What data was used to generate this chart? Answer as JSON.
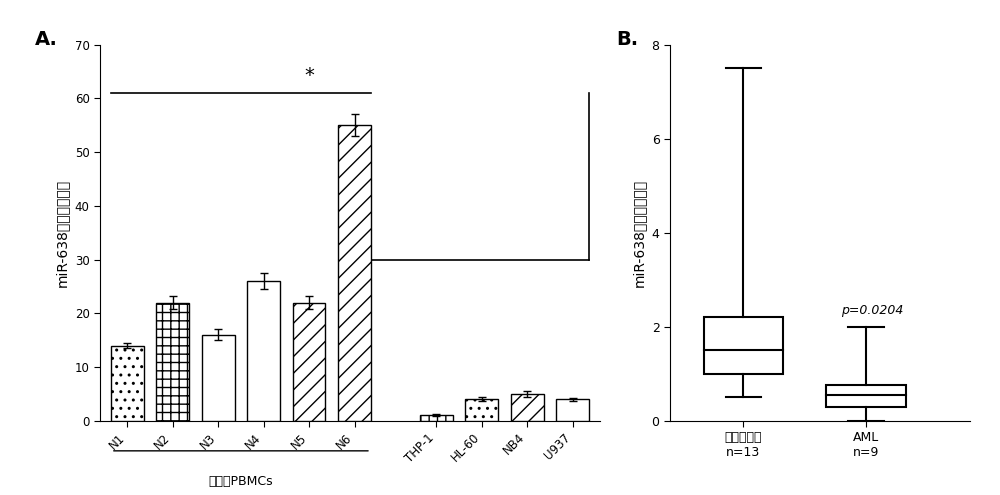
{
  "bar_categories": [
    "N1",
    "N2",
    "N3",
    "N4",
    "N5",
    "N6",
    "THP-1",
    "HL-60",
    "NB4",
    "U937"
  ],
  "bar_values": [
    14,
    22,
    16,
    26,
    22,
    55,
    1,
    4,
    5,
    4
  ],
  "bar_errors": [
    0.5,
    1.2,
    1.0,
    1.5,
    1.2,
    2.0,
    0.2,
    0.4,
    0.5,
    0.3
  ],
  "hatch_styles": [
    "..",
    "++",
    "==",
    "",
    "//",
    "//",
    "||",
    "..",
    "//",
    ""
  ],
  "group_label": "健康人PBMCs",
  "ylabel_A": "miR-638相对表达水平",
  "ylabel_B": "miR-638相对表达水平",
  "ylim_A": [
    0,
    70
  ],
  "yticks_A": [
    0,
    10,
    20,
    30,
    40,
    50,
    60,
    70
  ],
  "panel_A_label": "A.",
  "panel_B_label": "B.",
  "sig_label": "*",
  "p_value_text": "p=0.0204",
  "box_healthy_label": "健康人对照\nn=13",
  "box_aml_label": "AML\nn=9",
  "box_healthy": {
    "whisker_low": 0.5,
    "q1": 1.0,
    "median": 1.5,
    "q3": 2.2,
    "whisker_high": 7.5
  },
  "box_aml": {
    "whisker_low": 0.0,
    "q1": 0.3,
    "median": 0.55,
    "q3": 0.75,
    "whisker_high": 2.0
  },
  "ylim_B": [
    0,
    8
  ],
  "yticks_B": [
    0,
    2,
    4,
    6,
    8
  ],
  "background_color": "#ffffff"
}
